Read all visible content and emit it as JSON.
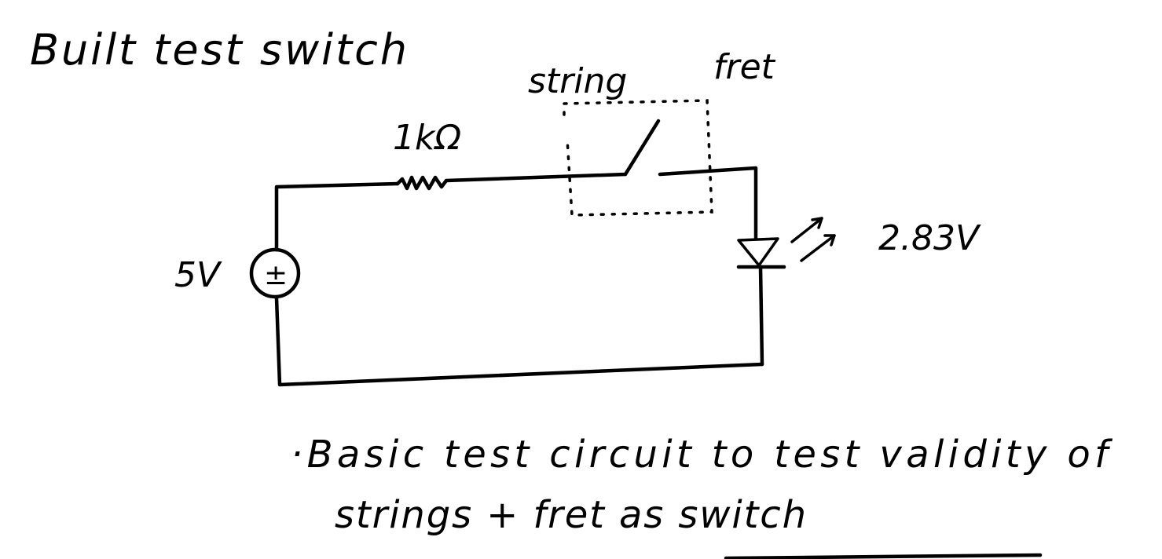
{
  "title": "Built test switch",
  "labels": {
    "string": "string",
    "fret": "fret",
    "resistor": "1kΩ",
    "source_voltage": "5V",
    "source_symbol": "±",
    "led_voltage": "2.83V"
  },
  "notes": {
    "line1": "·Basic test circuit to test validity of",
    "line2": "strings + fret as switch"
  },
  "colors": {
    "ink": "#000000",
    "paper": "#ffffff"
  }
}
